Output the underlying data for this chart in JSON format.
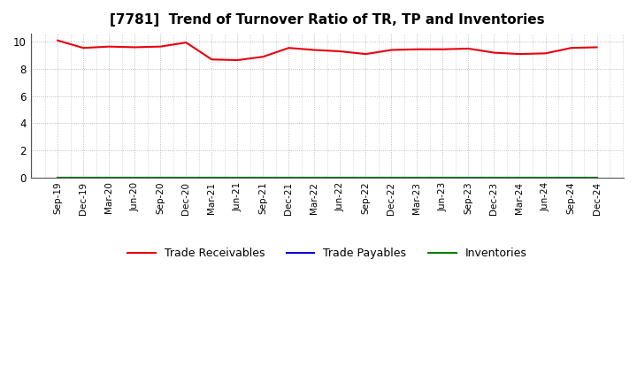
{
  "title": "[7781]  Trend of Turnover Ratio of TR, TP and Inventories",
  "x_labels": [
    "Sep-19",
    "Dec-19",
    "Mar-20",
    "Jun-20",
    "Sep-20",
    "Dec-20",
    "Mar-21",
    "Jun-21",
    "Sep-21",
    "Dec-21",
    "Mar-22",
    "Jun-22",
    "Sep-22",
    "Dec-22",
    "Mar-23",
    "Jun-23",
    "Sep-23",
    "Dec-23",
    "Mar-24",
    "Jun-24",
    "Sep-24",
    "Dec-24"
  ],
  "trade_receivables": [
    10.1,
    9.55,
    9.65,
    9.6,
    9.65,
    9.95,
    8.7,
    8.65,
    8.9,
    9.55,
    9.4,
    9.3,
    9.1,
    9.4,
    9.45,
    9.45,
    9.5,
    9.2,
    9.1,
    9.15,
    9.55,
    9.6
  ],
  "trade_payables": [
    0.0,
    0.0,
    0.0,
    0.0,
    0.0,
    0.0,
    0.0,
    0.0,
    0.0,
    0.0,
    0.0,
    0.0,
    0.0,
    0.0,
    0.0,
    0.0,
    0.0,
    0.0,
    0.0,
    0.0,
    0.0,
    0.0
  ],
  "inventories": [
    0.0,
    0.0,
    0.0,
    0.0,
    0.0,
    0.0,
    0.0,
    0.0,
    0.0,
    0.0,
    0.0,
    0.0,
    0.0,
    0.0,
    0.0,
    0.0,
    0.0,
    0.0,
    0.0,
    0.0,
    0.0,
    0.0
  ],
  "tr_color": "#e8000d",
  "tp_color": "#0000cd",
  "inv_color": "#008000",
  "ylim": [
    0,
    10.6
  ],
  "yticks": [
    0.0,
    2.0,
    4.0,
    6.0,
    8.0,
    10.0
  ],
  "ytick_labels": [
    "0",
    "2",
    "4",
    "6",
    "8",
    "10"
  ],
  "background_color": "#ffffff",
  "grid_color": "#aaaaaa",
  "title_fontsize": 11,
  "legend_labels": [
    "Trade Receivables",
    "Trade Payables",
    "Inventories"
  ]
}
